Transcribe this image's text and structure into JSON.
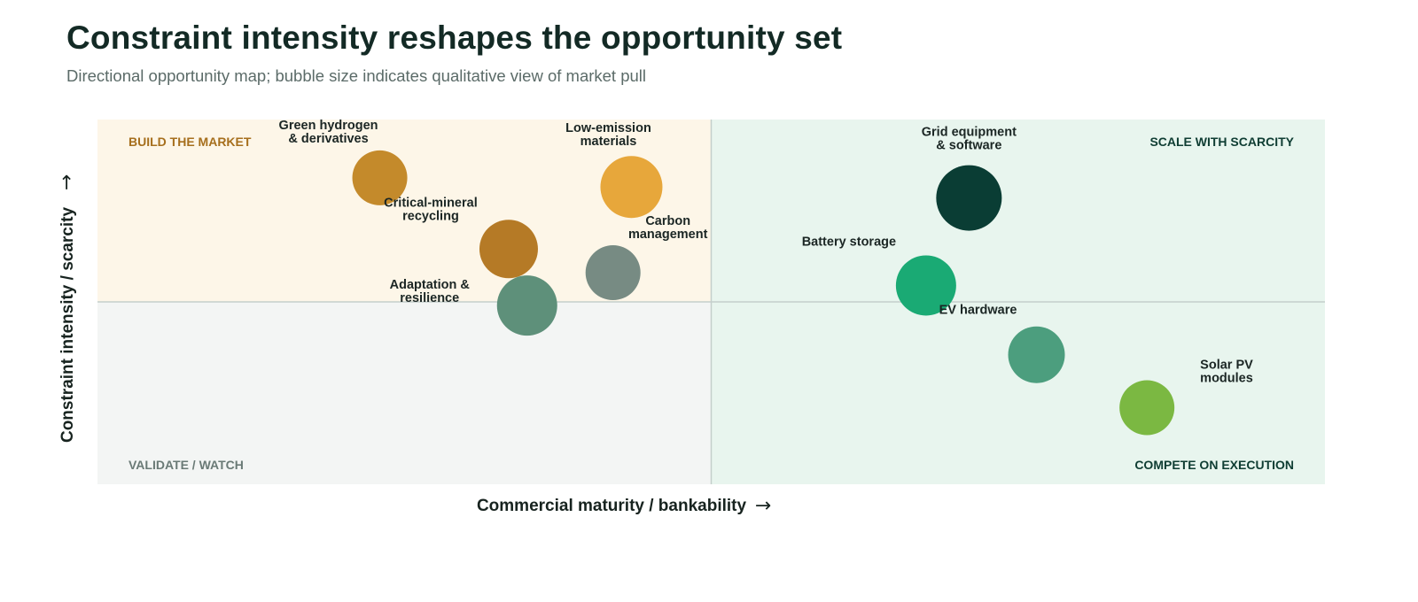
{
  "title": "Constraint intensity reshapes the opportunity set",
  "subtitle": "Directional opportunity map; bubble size indicates qualitative view of market pull",
  "chart_data": {
    "type": "scatter",
    "variant": "bubble",
    "xlabel": "Commercial maturity / bankability",
    "ylabel": "Constraint intensity / scarcity",
    "x_arrow": "→",
    "y_arrow": "→",
    "xlim": [
      0,
      10
    ],
    "ylim": [
      0,
      10
    ],
    "x_divider": 5,
    "y_divider": 5,
    "grid": false,
    "legend": "none",
    "quadrants": [
      {
        "id": "top-left",
        "label": "BUILD THE MARKET",
        "fill": "#fdf6e8",
        "label_color": "#a66f1d"
      },
      {
        "id": "top-right",
        "label": "SCALE WITH SCARCITY",
        "fill": "#e8f5ee",
        "label_color": "#0f3d33"
      },
      {
        "id": "bottom-left",
        "label": "VALIDATE / WATCH",
        "fill": "#f3f5f4",
        "label_color": "#6a7a76"
      },
      {
        "id": "bottom-right",
        "label": "COMPETE ON EXECUTION",
        "fill": "#e8f5ee",
        "label_color": "#0f3d33"
      }
    ],
    "points": [
      {
        "name": "Green hydrogen & derivatives",
        "label_lines": [
          "Green hydrogen",
          "& derivatives"
        ],
        "x": 2.3,
        "y": 8.4,
        "size": 31,
        "color": "#c48a2b"
      },
      {
        "name": "Low-emission materials",
        "label_lines": [
          "Low-emission",
          "materials"
        ],
        "x": 4.35,
        "y": 8.15,
        "size": 35,
        "color": "#e7a73b"
      },
      {
        "name": "Critical-mineral recycling",
        "label_lines": [
          "Critical-mineral",
          "recycling"
        ],
        "x": 3.35,
        "y": 6.45,
        "size": 33,
        "color": "#b57a26"
      },
      {
        "name": "Carbon management",
        "label_lines": [
          "Carbon",
          "management"
        ],
        "x": 4.2,
        "y": 5.8,
        "size": 31,
        "color": "#778b83"
      },
      {
        "name": "Adaptation & resilience",
        "label_lines": [
          "Adaptation &",
          "resilience"
        ],
        "x": 3.5,
        "y": 4.9,
        "size": 34,
        "color": "#5e907a"
      },
      {
        "name": "Grid equipment & software",
        "label_lines": [
          "Grid equipment",
          "& software"
        ],
        "x": 7.1,
        "y": 7.85,
        "size": 37,
        "color": "#0a3d34"
      },
      {
        "name": "Battery storage",
        "label_lines": [
          "Battery storage"
        ],
        "x": 6.75,
        "y": 5.45,
        "size": 34,
        "color": "#1aaa74"
      },
      {
        "name": "EV hardware",
        "label_lines": [
          "EV hardware"
        ],
        "x": 7.65,
        "y": 3.55,
        "size": 32,
        "color": "#4c9e7e"
      },
      {
        "name": "Solar PV modules",
        "label_lines": [
          "Solar PV",
          "modules"
        ],
        "x": 8.55,
        "y": 2.1,
        "size": 31,
        "color": "#7bb842"
      }
    ]
  }
}
